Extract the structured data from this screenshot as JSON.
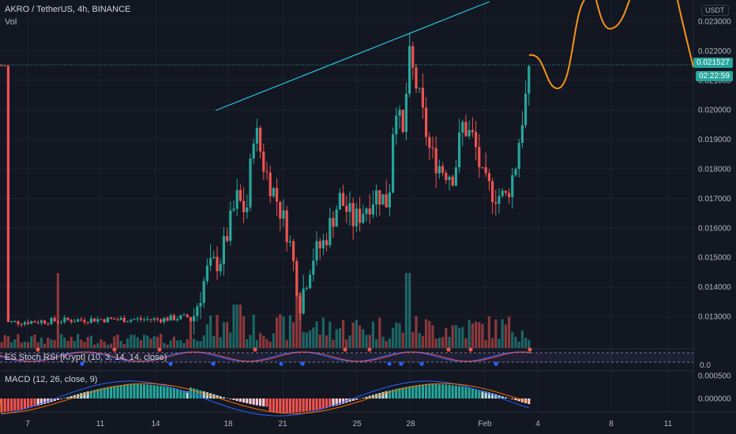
{
  "header": {
    "symbol_line": "AKRO / TetherUS, 4h, BINANCE",
    "vol_label": "Vol",
    "currency_button": "USDT"
  },
  "indicators": {
    "stoch_label": "ES Stoch RSI [Krypt] (10, 3, 14, 14, close)",
    "stoch_value": "0.0",
    "macd_label": "MACD (12, 26, close, 9)"
  },
  "price_axis": {
    "ticks": [
      "0.023000",
      "0.022000",
      "0.021000",
      "0.020000",
      "0.019000",
      "0.018000",
      "0.017000",
      "0.016000",
      "0.015000",
      "0.014000",
      "0.013000"
    ],
    "last_price": "0.021527",
    "countdown": "02:22:59"
  },
  "macd_axis": {
    "ticks": [
      "0.000500",
      "0.000000"
    ]
  },
  "time_axis": {
    "labels": [
      "7",
      "11",
      "14",
      "18",
      "21",
      "25",
      "28",
      "Feb",
      "4",
      "8",
      "11"
    ]
  },
  "colors": {
    "bg": "#131722",
    "up": "#26a69a",
    "down": "#ef5350",
    "trendline": "#26c6da",
    "projection": "#f7931a",
    "price_tag": "#26a69a",
    "macd_line": "#2962ff",
    "signal_line": "#ff6d00"
  },
  "chart_data": {
    "type": "candlestick",
    "title": "AKRO / TetherUS, 4h, BINANCE",
    "ylim": [
      0.0123,
      0.0233
    ],
    "grid": true,
    "legend": "top-left",
    "key_levels": {
      "last_price": 0.021527,
      "swing_high": 0.0225,
      "swing_low": 0.013
    },
    "trendline": {
      "from": [
        0.02
      ],
      "to": [
        0.0233
      ],
      "style": "resistance line connecting two highs"
    },
    "projection": {
      "description": "orange projected path to the right of the last candle",
      "color": "#f7931a"
    }
  }
}
